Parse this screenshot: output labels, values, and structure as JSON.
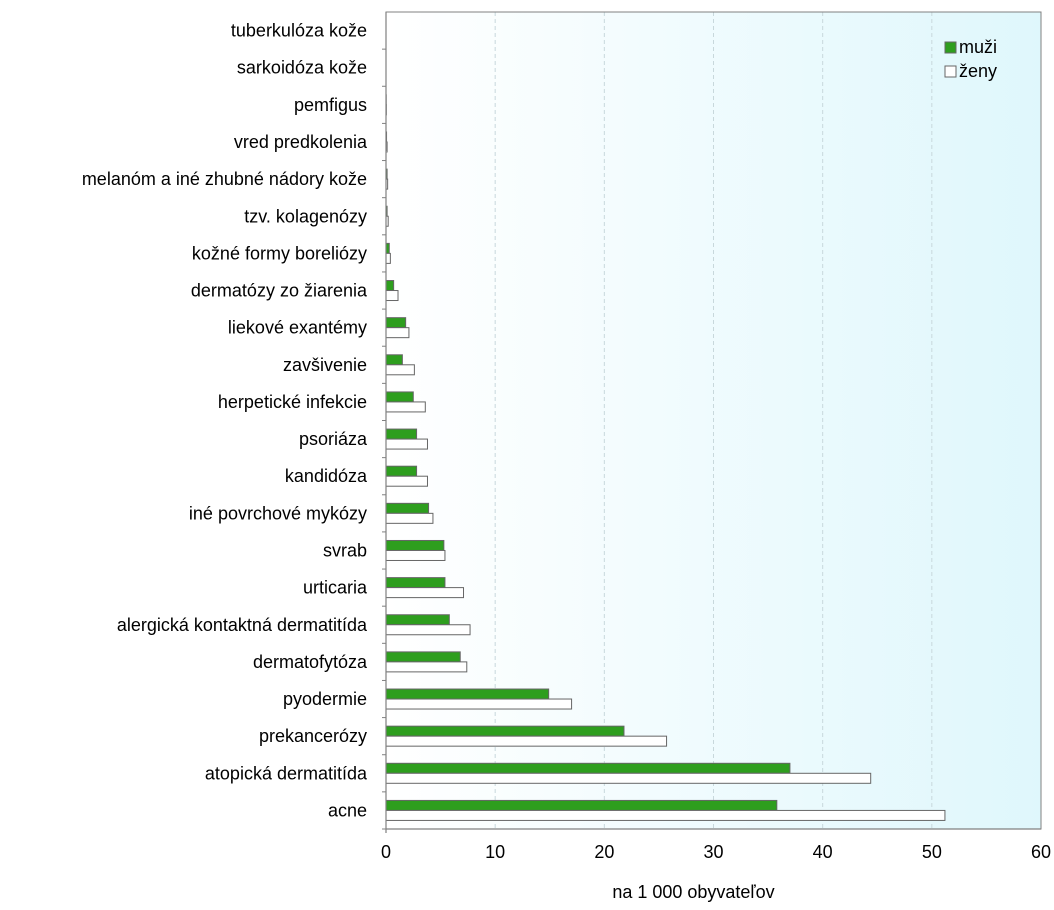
{
  "chart_data": {
    "type": "bar",
    "orientation": "horizontal",
    "categories": [
      "tuberkulóza kože",
      "sarkoidóza kože",
      "pemfigus",
      "vred predkolenia",
      "melanóm a iné zhubné nádory kože",
      "tzv. kolagenózy",
      "kožné formy boreliózy",
      "dermatózy zo žiarenia",
      "liekové exantémy",
      "zavšivenie",
      "herpetické infekcie",
      "psoriáza",
      "kandidóza",
      "iné povrchové mykózy",
      "svrab",
      "urticaria",
      "alergická kontaktná dermatitída",
      "dermatofytóza",
      "pyodermie",
      "prekancerózy",
      "atopická dermatitída",
      "acne"
    ],
    "series": [
      {
        "name": "muži",
        "color": "#2e9e1e",
        "values": [
          0,
          0,
          0.02,
          0.05,
          0.1,
          0.1,
          0.3,
          0.7,
          1.8,
          1.5,
          2.5,
          2.8,
          2.8,
          3.9,
          5.3,
          5.4,
          5.8,
          6.8,
          14.9,
          21.8,
          37.0,
          35.8
        ]
      },
      {
        "name": "ženy",
        "color": "#ffffff",
        "values": [
          0,
          0,
          0.03,
          0.1,
          0.15,
          0.2,
          0.4,
          1.1,
          2.1,
          2.6,
          3.6,
          3.8,
          3.8,
          4.3,
          5.4,
          7.1,
          7.7,
          7.4,
          17.0,
          25.7,
          44.4,
          51.2
        ]
      }
    ],
    "xlabel": "na 1 000 obyvateľov",
    "xlim": [
      0,
      60
    ],
    "xticks": [
      "0",
      "10",
      "20",
      "30",
      "40",
      "50",
      "60"
    ],
    "grid": "vertical dashed",
    "legend_position": "top-right",
    "colors": {
      "plot_bg_left": "#ffffff",
      "plot_bg_right": "#dff7fc",
      "axis": "#808080",
      "bar_outline": "#666666"
    }
  }
}
